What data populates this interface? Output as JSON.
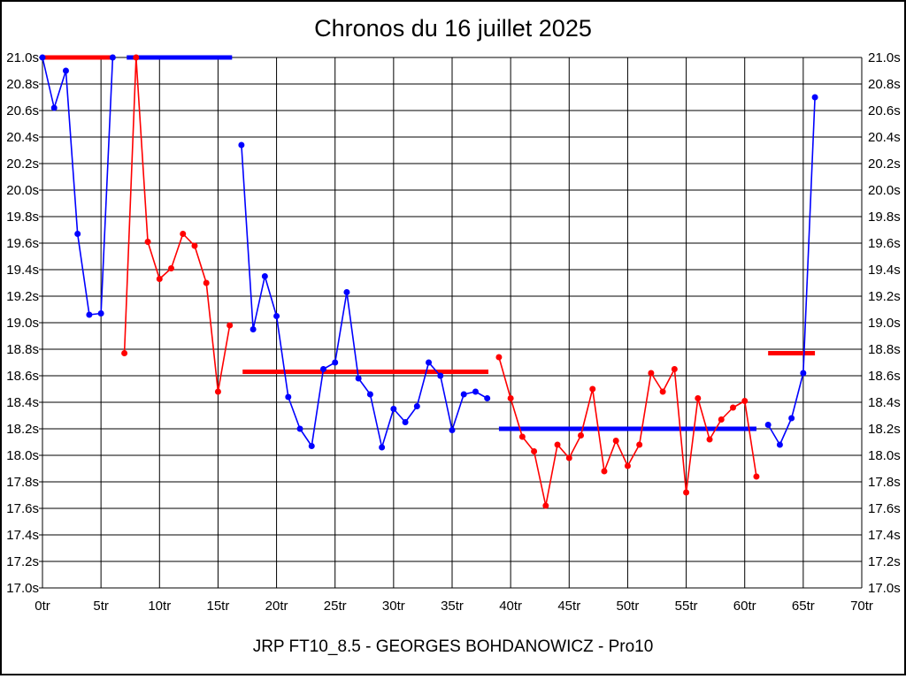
{
  "chart_data": {
    "type": "line",
    "title": "Chronos du 16 juillet 2025",
    "footer": "JRP FT10_8.5 - GEORGES BOHDANOWICZ - Pro10",
    "xlabel": "",
    "ylabel": "",
    "x_tick_suffix": "tr",
    "y_tick_suffix": "s",
    "xlim": [
      0,
      70
    ],
    "ylim": [
      17.0,
      21.0
    ],
    "x_tick_step": 5,
    "y_tick_step": 0.2,
    "grid": "on",
    "colors": {
      "blue_driver": "#0000ff",
      "red_driver": "#ff0000",
      "grid": "#000000",
      "background": "#ffffff"
    },
    "stints": [
      {
        "driver": "blue",
        "color": "#0000ff",
        "start_lap": 0,
        "values": [
          21.0,
          20.62,
          20.9,
          19.67,
          19.06,
          19.07,
          21.0
        ],
        "avg_line": {
          "color": "#ff0000",
          "value": 21.0,
          "from": 0,
          "to": 6.2
        }
      },
      {
        "driver": "red",
        "color": "#ff0000",
        "start_lap": 7,
        "values": [
          18.77,
          21.0,
          19.61,
          19.33,
          19.41,
          19.67,
          19.58,
          19.3,
          18.48,
          18.98
        ],
        "avg_line": {
          "color": "#0000ff",
          "value": 21.0,
          "from": 7.2,
          "to": 16.2
        }
      },
      {
        "driver": "blue",
        "color": "#0000ff",
        "start_lap": 17,
        "values": [
          20.34,
          18.95,
          19.35,
          19.05,
          18.44,
          18.2,
          18.07,
          18.65,
          18.7,
          19.23,
          18.58,
          18.46,
          18.06,
          18.35,
          18.25,
          18.37,
          18.7,
          18.6,
          18.19,
          18.46,
          18.48,
          18.43
        ],
        "avg_line": {
          "color": "#ff0000",
          "value": 18.63,
          "from": 17.1,
          "to": 38.1
        }
      },
      {
        "driver": "red",
        "color": "#ff0000",
        "start_lap": 39,
        "values": [
          18.74,
          18.43,
          18.14,
          18.03,
          17.62,
          18.08,
          17.98,
          18.15,
          18.5,
          17.88,
          18.11,
          17.92,
          18.08,
          18.62,
          18.48,
          18.65,
          17.72,
          18.43,
          18.12,
          18.27,
          18.36,
          18.41,
          17.84
        ],
        "avg_line": {
          "color": "#0000ff",
          "value": 18.2,
          "from": 39,
          "to": 61
        }
      },
      {
        "driver": "blue",
        "color": "#0000ff",
        "start_lap": 62,
        "values": [
          18.23,
          18.08,
          18.28,
          18.62,
          20.7
        ],
        "avg_line": {
          "color": "#ff0000",
          "value": 18.77,
          "from": 62,
          "to": 66
        }
      }
    ]
  }
}
